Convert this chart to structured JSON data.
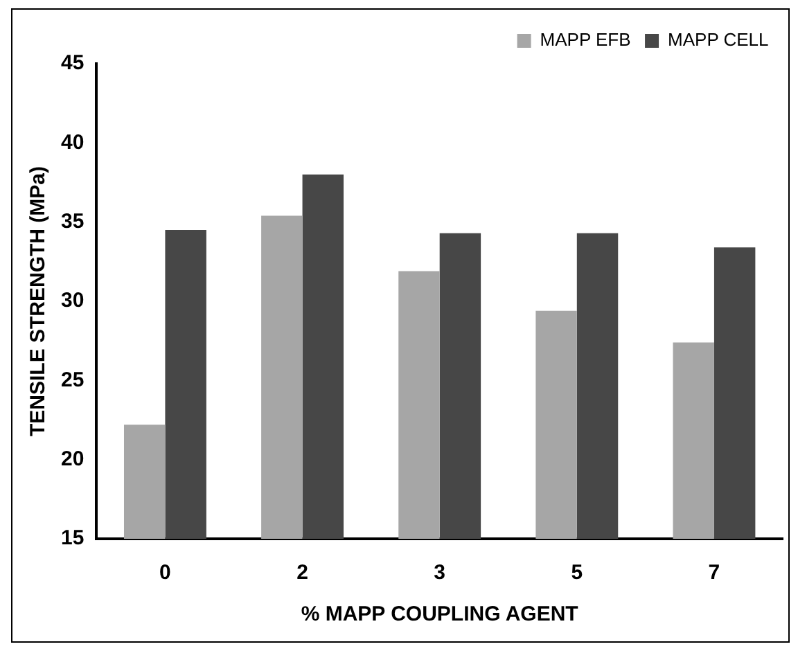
{
  "chart_data": {
    "type": "bar",
    "xlabel": "% MAPP COUPLING AGENT",
    "ylabel": "TENSILE STRENGTH (MPa)",
    "categories": [
      "0",
      "2",
      "3",
      "5",
      "7"
    ],
    "series": [
      {
        "name": "MAPP EFB",
        "color": "#a6a6a6",
        "values": [
          22.2,
          35.4,
          31.9,
          29.4,
          27.4
        ]
      },
      {
        "name": "MAPP CELL",
        "color": "#474747",
        "values": [
          34.5,
          38.0,
          34.3,
          34.3,
          33.4
        ]
      }
    ],
    "ylim": [
      15,
      45
    ],
    "yticks": [
      15,
      20,
      25,
      30,
      35,
      40,
      45
    ],
    "grid": false,
    "legend": "top right"
  }
}
